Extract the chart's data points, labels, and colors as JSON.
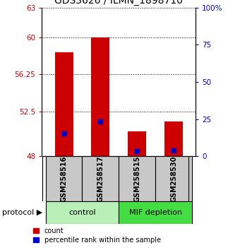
{
  "title": "GDS3626 / ILMN_1898710",
  "samples": [
    "GSM258516",
    "GSM258517",
    "GSM258515",
    "GSM258530"
  ],
  "red_values": [
    58.5,
    60.0,
    50.5,
    51.5
  ],
  "blue_values": [
    50.3,
    51.5,
    48.5,
    48.6
  ],
  "ymin": 48,
  "ymax": 63,
  "yticks_left": [
    48,
    52.5,
    56.25,
    60,
    63
  ],
  "yticks_right_pct": [
    0,
    25,
    50,
    75,
    100
  ],
  "left_tick_color": "#cc0000",
  "right_tick_color": "#0000cc",
  "bar_color": "#cc0000",
  "blue_color": "#0000cc",
  "bar_width": 0.5,
  "control_color": "#b8f0b8",
  "mif_color": "#44dd44",
  "gray_color": "#c8c8c8",
  "title_fontsize": 10,
  "tick_fontsize": 7.5,
  "label_fontsize": 7,
  "proto_fontsize": 8
}
